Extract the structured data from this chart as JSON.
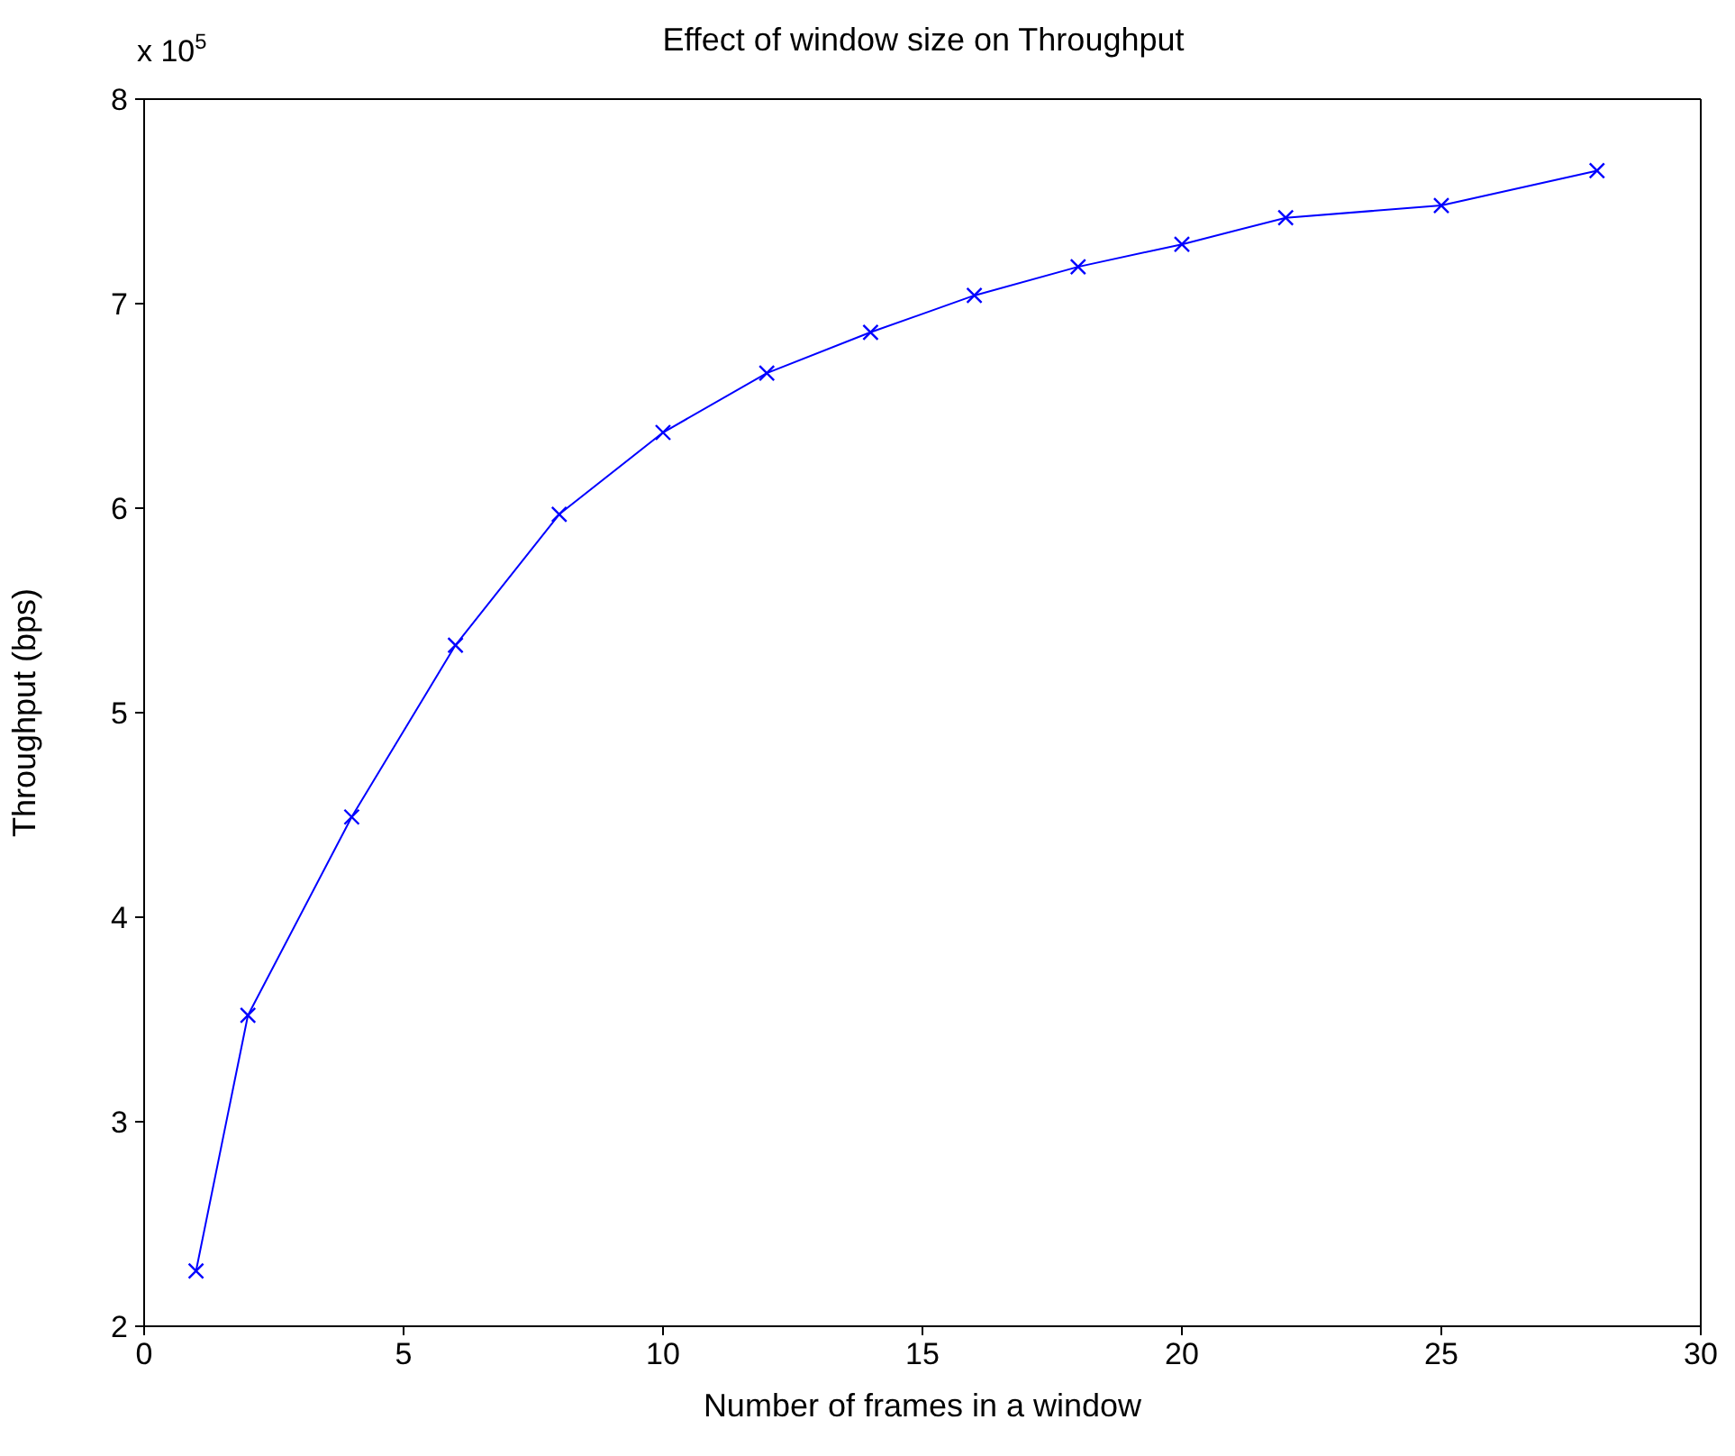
{
  "chart_data": {
    "type": "line",
    "title": "Effect of window size on Throughput",
    "xlabel": "Number of frames in a window",
    "ylabel": "Throughput  (bps)",
    "annotations": [
      "x 10$^{5}$"
    ],
    "x": [
      1,
      2,
      4,
      6,
      8,
      10,
      12,
      14,
      16,
      18,
      20,
      22,
      25,
      28
    ],
    "series": [
      {
        "color": "#0000ff",
        "values": [
          2.27,
          3.52,
          4.49,
          5.33,
          5.97,
          6.37,
          6.66,
          6.86,
          7.04,
          7.18,
          7.29,
          7.42,
          7.48,
          7.65
        ]
      }
    ],
    "xlim": [
      0,
      30
    ],
    "xticks": [
      0,
      5,
      10,
      15,
      20,
      25,
      30
    ],
    "ylim": [
      2,
      8
    ],
    "yticks": [
      2,
      3,
      4,
      5,
      6,
      7,
      8
    ],
    "marker": "cross",
    "line_style": "solid"
  }
}
